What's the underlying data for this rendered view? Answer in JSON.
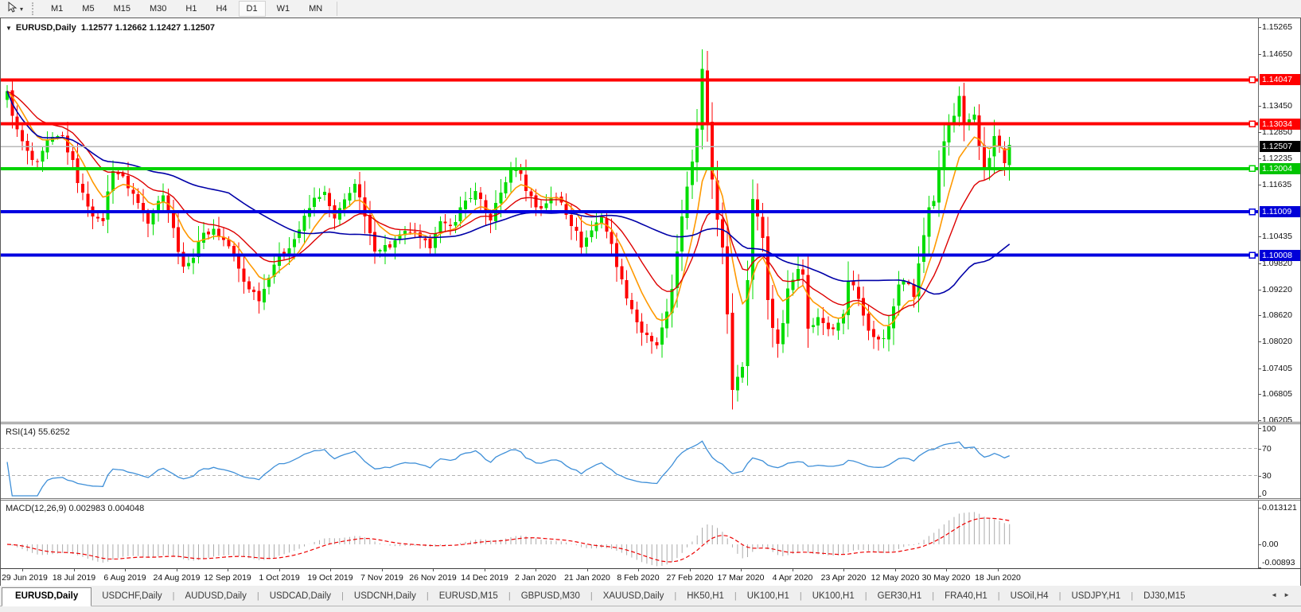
{
  "toolbar": {
    "tool_dropdown_icon": "▾",
    "timeframes": [
      {
        "label": "M1",
        "active": false
      },
      {
        "label": "M5",
        "active": false
      },
      {
        "label": "M15",
        "active": false
      },
      {
        "label": "M30",
        "active": false
      },
      {
        "label": "H1",
        "active": false
      },
      {
        "label": "H4",
        "active": false
      },
      {
        "label": "D1",
        "active": true
      },
      {
        "label": "W1",
        "active": false
      },
      {
        "label": "MN",
        "active": false
      }
    ]
  },
  "chart": {
    "dropdown_icon": "▼",
    "symbol": "EURUSD,Daily",
    "ohlc": "1.12577 1.12662 1.12427 1.12507"
  },
  "chart_data": [
    {
      "type": "candlestick",
      "title": "EURUSD,Daily",
      "open": "1.12577",
      "high": "1.12662",
      "low": "1.12427",
      "close": "1.12507",
      "ylim": [
        1.06205,
        1.15265
      ],
      "yticks": [
        "1.15265",
        "1.14650",
        "1.13450",
        "1.12850",
        "1.12235",
        "1.11635",
        "1.10435",
        "1.09820",
        "1.09220",
        "1.08620",
        "1.08020",
        "1.07405",
        "1.06805",
        "1.06205"
      ],
      "x_labels": [
        "29 Jun 2019",
        "18 Jul 2019",
        "6 Aug 2019",
        "24 Aug 2019",
        "12 Sep 2019",
        "1 Oct 2019",
        "19 Oct 2019",
        "7 Nov 2019",
        "26 Nov 2019",
        "14 Dec 2019",
        "2 Jan 2020",
        "21 Jan 2020",
        "8 Feb 2020",
        "27 Feb 2020",
        "17 Mar 2020",
        "4 Apr 2020",
        "23 Apr 2020",
        "12 May 2020",
        "30 May 2020",
        "18 Jun 2020"
      ],
      "horizontal_lines": [
        {
          "value": 1.14047,
          "label": "1.14047",
          "color": "#FF0000",
          "label_bg": "#FF0000",
          "is_price": false
        },
        {
          "value": 1.13034,
          "label": "1.13034",
          "color": "#FF0000",
          "label_bg": "#FF0000",
          "is_price": false
        },
        {
          "value": 1.12507,
          "label": "1.12507",
          "color": "#B8B8B8",
          "label_bg": "#000000",
          "is_price": true
        },
        {
          "value": 1.12004,
          "label": "1.12004",
          "color": "#00D300",
          "label_bg": "#00C400",
          "is_price": false
        },
        {
          "value": 1.11009,
          "label": "1.11009",
          "color": "#0000E0",
          "label_bg": "#0000D8",
          "is_price": false
        },
        {
          "value": 1.10008,
          "label": "1.10008",
          "color": "#0000E0",
          "label_bg": "#0000D8",
          "is_price": false
        }
      ],
      "candle_up_color": "#00DD00",
      "candle_down_color": "#FF0000",
      "moving_averages": [
        {
          "name": "fast-ma",
          "type": "ema",
          "period": 8,
          "color": "#FF9900",
          "width": 1.6
        },
        {
          "name": "medium-ma",
          "type": "ema",
          "period": 18,
          "color": "#DD0000",
          "width": 1.4
        },
        {
          "name": "slow-ma",
          "type": "sma",
          "period": 45,
          "color": "#0000A8",
          "width": 1.6
        }
      ],
      "close_anchors": [
        [
          0.0,
          1.1373
        ],
        [
          0.01,
          1.1286
        ],
        [
          0.022,
          1.1227
        ],
        [
          0.03,
          1.1207
        ],
        [
          0.04,
          1.1259
        ],
        [
          0.055,
          1.1276
        ],
        [
          0.066,
          1.1208
        ],
        [
          0.074,
          1.1145
        ],
        [
          0.091,
          1.1075
        ],
        [
          0.096,
          1.1085
        ],
        [
          0.105,
          1.1203
        ],
        [
          0.118,
          1.117
        ],
        [
          0.126,
          1.114
        ],
        [
          0.14,
          1.1078
        ],
        [
          0.154,
          1.1145
        ],
        [
          0.163,
          1.1101
        ],
        [
          0.172,
          1.099
        ],
        [
          0.182,
          1.0972
        ],
        [
          0.19,
          1.1034
        ],
        [
          0.205,
          1.1063
        ],
        [
          0.223,
          1.1017
        ],
        [
          0.235,
          1.0944
        ],
        [
          0.25,
          1.0904
        ],
        [
          0.254,
          1.0899
        ],
        [
          0.257,
          1.0932
        ],
        [
          0.265,
          1.0979
        ],
        [
          0.287,
          1.104
        ],
        [
          0.305,
          1.1125
        ],
        [
          0.315,
          1.115
        ],
        [
          0.327,
          1.108
        ],
        [
          0.342,
          1.1152
        ],
        [
          0.347,
          1.1166
        ],
        [
          0.365,
          1.1018
        ],
        [
          0.381,
          1.1021
        ],
        [
          0.401,
          1.1058
        ],
        [
          0.421,
          1.1018
        ],
        [
          0.43,
          1.1078
        ],
        [
          0.441,
          1.106
        ],
        [
          0.458,
          1.113
        ],
        [
          0.468,
          1.1145
        ],
        [
          0.481,
          1.1078
        ],
        [
          0.498,
          1.1177
        ],
        [
          0.509,
          1.1212
        ],
        [
          0.514,
          1.1172
        ],
        [
          0.53,
          1.1103
        ],
        [
          0.536,
          1.1122
        ],
        [
          0.551,
          1.1135
        ],
        [
          0.573,
          1.1024
        ],
        [
          0.593,
          1.1093
        ],
        [
          0.606,
          1.1
        ],
        [
          0.612,
          1.0946
        ],
        [
          0.631,
          1.0831
        ],
        [
          0.647,
          1.0785
        ],
        [
          0.661,
          1.0881
        ],
        [
          0.669,
          1.1027
        ],
        [
          0.68,
          1.1173
        ],
        [
          0.688,
          1.1284
        ],
        [
          0.694,
          1.145
        ],
        [
          0.7,
          1.1271
        ],
        [
          0.706,
          1.1106
        ],
        [
          0.716,
          1.0995
        ],
        [
          0.722,
          1.0692
        ],
        [
          0.733,
          1.0727
        ],
        [
          0.741,
          1.103
        ],
        [
          0.744,
          1.1141
        ],
        [
          0.755,
          1.1031
        ],
        [
          0.76,
          1.0859
        ],
        [
          0.771,
          1.0791
        ],
        [
          0.779,
          1.093
        ],
        [
          0.793,
          1.098
        ],
        [
          0.799,
          1.084
        ],
        [
          0.812,
          1.0858
        ],
        [
          0.821,
          1.082
        ],
        [
          0.835,
          1.0875
        ],
        [
          0.838,
          1.0955
        ],
        [
          0.849,
          1.0905
        ],
        [
          0.857,
          1.0834
        ],
        [
          0.868,
          1.0807
        ],
        [
          0.876,
          1.0805
        ],
        [
          0.887,
          1.0916
        ],
        [
          0.895,
          1.0948
        ],
        [
          0.906,
          1.0898
        ],
        [
          0.909,
          1.0983
        ],
        [
          0.918,
          1.1101
        ],
        [
          0.926,
          1.1134
        ],
        [
          0.932,
          1.1234
        ],
        [
          0.937,
          1.129
        ],
        [
          0.948,
          1.134
        ],
        [
          0.951,
          1.1375
        ],
        [
          0.954,
          1.1298
        ],
        [
          0.965,
          1.1324
        ],
        [
          0.97,
          1.1244
        ],
        [
          0.976,
          1.1177
        ],
        [
          0.984,
          1.126
        ],
        [
          0.987,
          1.1307
        ],
        [
          0.99,
          1.1251
        ],
        [
          0.995,
          1.1218
        ],
        [
          1.0,
          1.1251
        ]
      ],
      "render": {
        "num_candles": 200,
        "x_first": 8,
        "x_step": 6.33,
        "body_width": 4,
        "plot_right": 1580,
        "y_of_max": 11,
        "y_of_min": 505,
        "noise": 0.0009,
        "wick": 0.0024,
        "clamp_high": 1.1502,
        "clamp_low": 1.064,
        "label_x_first": 27,
        "label_x_step": 64.5
      }
    },
    {
      "type": "line",
      "name": "RSI",
      "params": "14",
      "value": "55.6252",
      "label": "RSI(14) 55.6252",
      "color": "#3E8FD8",
      "ylim": [
        0,
        100
      ],
      "levels": [
        70,
        30
      ],
      "yticks": [
        {
          "label": "100",
          "value": 100
        },
        {
          "label": "70",
          "value": 70
        },
        {
          "label": "30",
          "value": 30
        },
        {
          "label": "0",
          "value": 0
        }
      ],
      "render": {
        "y_of_100": 5,
        "y_of_0": 90
      }
    },
    {
      "type": "histogram+line",
      "name": "MACD",
      "params": "12,26,9",
      "main_value": "0.002983",
      "signal_value": "0.004048",
      "label": "MACD(12,26,9) 0.002983 0.004048",
      "fast": 12,
      "slow": 26,
      "signal": 9,
      "histogram_color": "#ABABAB",
      "signal_color": "#EE0000",
      "ylim": [
        -0.00893,
        0.013121
      ],
      "yticks": [
        {
          "label": "0.013121",
          "value": 0.013121
        },
        {
          "label": "0.00",
          "value": 0
        },
        {
          "label": "-0.00893",
          "value": -0.00893
        }
      ],
      "render": {
        "y_zero": 55,
        "y_of_max": 9
      }
    }
  ],
  "bottom_tabs": {
    "scroll_left_icon": "◄",
    "scroll_right_icon": "►",
    "tabs": [
      {
        "label": "EURUSD,Daily",
        "active": true
      },
      {
        "label": "USDCHF,Daily",
        "active": false
      },
      {
        "label": "AUDUSD,Daily",
        "active": false
      },
      {
        "label": "USDCAD,Daily",
        "active": false
      },
      {
        "label": "USDCNH,Daily",
        "active": false
      },
      {
        "label": "EURUSD,M15",
        "active": false
      },
      {
        "label": "GBPUSD,M30",
        "active": false
      },
      {
        "label": "XAUUSD,Daily",
        "active": false
      },
      {
        "label": "HK50,H1",
        "active": false
      },
      {
        "label": "UK100,H1",
        "active": false
      },
      {
        "label": "UK100,H1",
        "active": false
      },
      {
        "label": "GER30,H1",
        "active": false
      },
      {
        "label": "FRA40,H1",
        "active": false
      },
      {
        "label": "USOil,H4",
        "active": false
      },
      {
        "label": "USDJPY,H1",
        "active": false
      },
      {
        "label": "DJ30,M15",
        "active": false
      }
    ]
  }
}
